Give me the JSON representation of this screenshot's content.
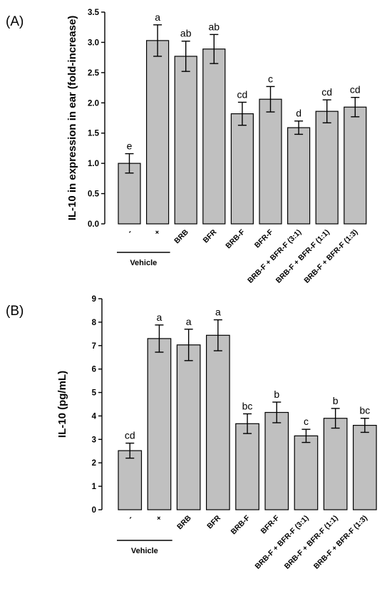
{
  "chart_data": [
    {
      "type": "bar",
      "panel_label": "(A)",
      "ylabel": "IL-10 in expression in ear (fold-increase)",
      "ylim": [
        0,
        3.5
      ],
      "yticks": [
        "0.0",
        "0.5",
        "1.0",
        "1.5",
        "2.0",
        "2.5",
        "3.0",
        "3.5"
      ],
      "categories": [
        "-",
        "+",
        "BRB",
        "BFR",
        "BRB-F",
        "BFR-F",
        "BRB-F + BFR-F (3:1)",
        "BRB-F + BFR-F (1:1)",
        "BRB-F + BFR-F (1:3)"
      ],
      "values": [
        1.0,
        3.03,
        2.77,
        2.89,
        1.82,
        2.06,
        1.59,
        1.86,
        1.93
      ],
      "errors": [
        0.16,
        0.26,
        0.25,
        0.24,
        0.19,
        0.21,
        0.11,
        0.19,
        0.16
      ],
      "significance": [
        "e",
        "a",
        "ab",
        "ab",
        "cd",
        "c",
        "d",
        "cd",
        "cd"
      ],
      "group_label": "Vehicle",
      "grid": false,
      "legend": "none",
      "bar_color": "#c0c0c0"
    },
    {
      "type": "bar",
      "panel_label": "(B)",
      "ylabel": "IL-10 (pg/mL)",
      "ylim": [
        0,
        9
      ],
      "yticks": [
        "0",
        "1",
        "2",
        "3",
        "4",
        "5",
        "6",
        "7",
        "8",
        "9"
      ],
      "categories": [
        "-",
        "+",
        "BRB",
        "BFR",
        "BRB-F",
        "BFR-F",
        "BRB-F + BFR-F (3:1)",
        "BRB-F + BFR-F (1:1)",
        "BRB-F + BFR-F (1:3)"
      ],
      "values": [
        2.52,
        7.3,
        7.03,
        7.44,
        3.67,
        4.15,
        3.15,
        3.9,
        3.6
      ],
      "errors": [
        0.32,
        0.58,
        0.67,
        0.66,
        0.42,
        0.44,
        0.28,
        0.42,
        0.3
      ],
      "significance": [
        "cd",
        "a",
        "a",
        "a",
        "bc",
        "b",
        "c",
        "b",
        "bc"
      ],
      "group_label": "Vehicle",
      "grid": false,
      "legend": "none",
      "bar_color": "#c0c0c0"
    }
  ]
}
